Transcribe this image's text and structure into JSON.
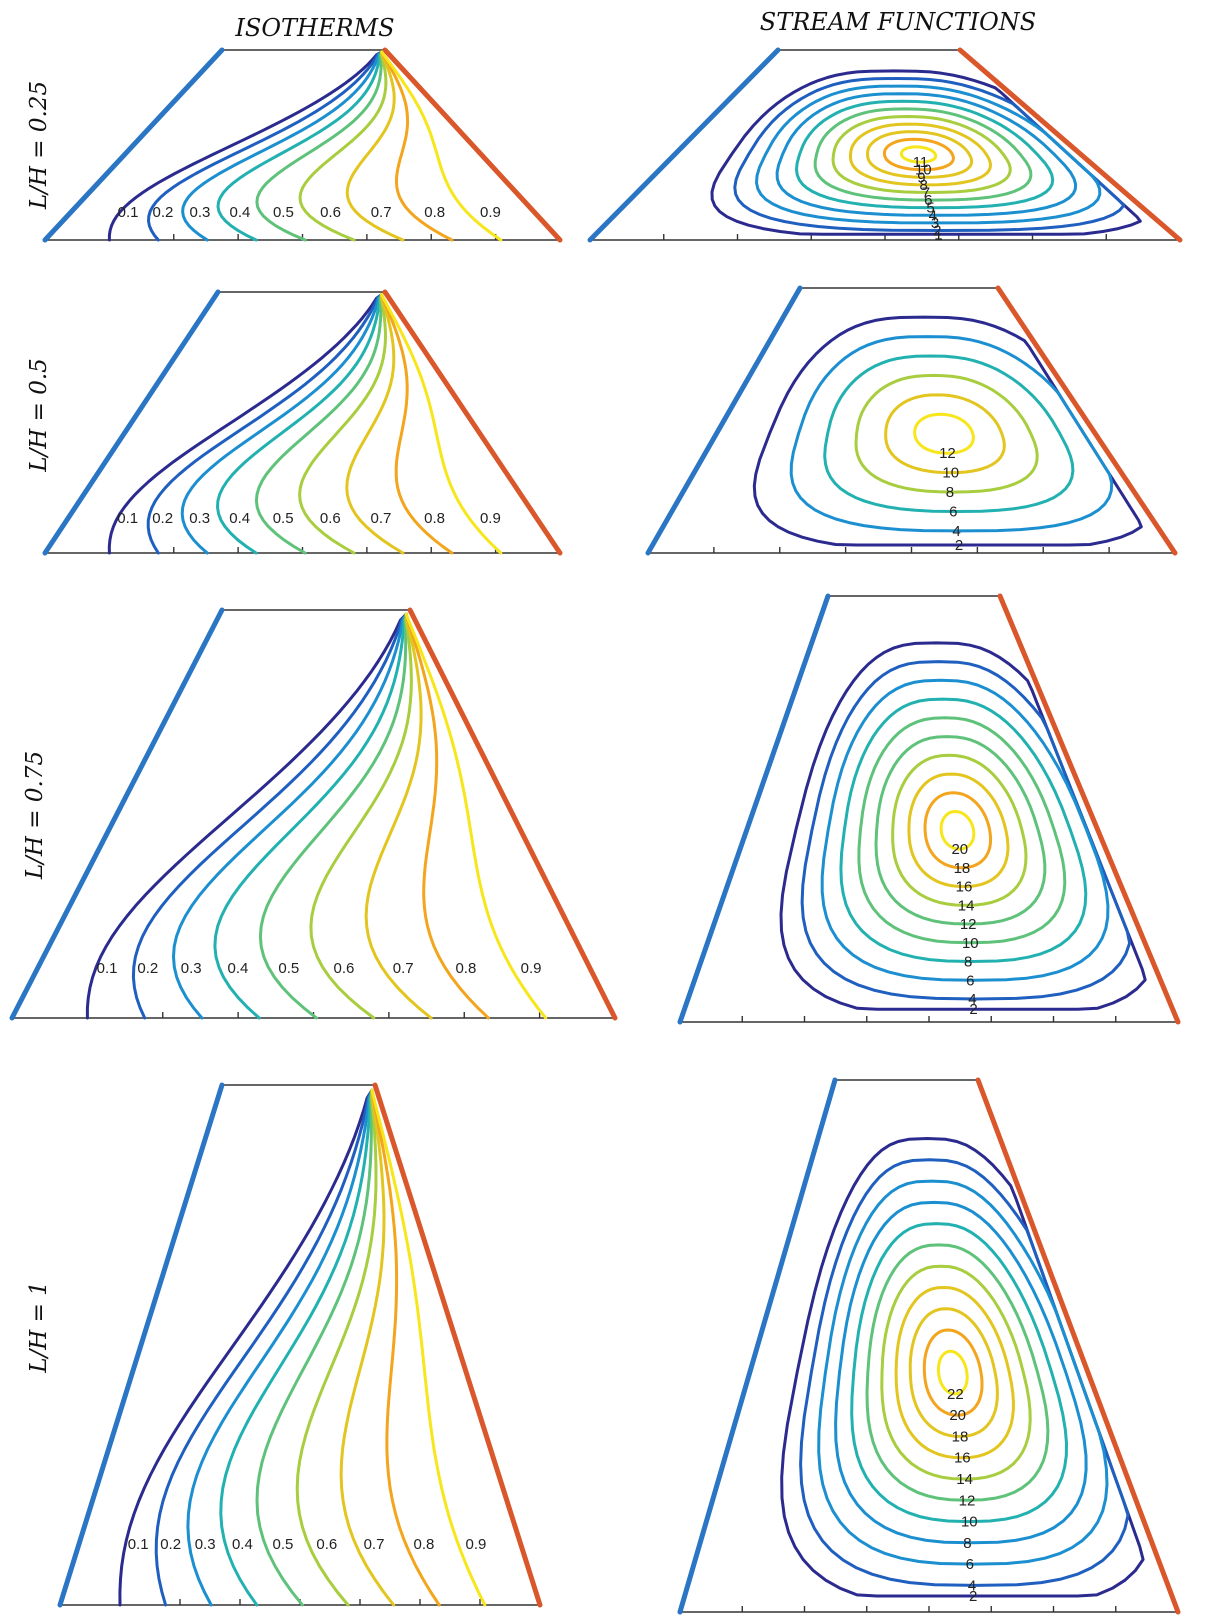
{
  "column_titles": {
    "left": "ISOTHERMS",
    "right": "STREAM FUNCTIONS"
  },
  "row_labels": [
    "L/H = 0.25",
    "L/H = 0.5",
    "L/H = 0.75",
    "L/H = 1"
  ],
  "colors": {
    "cold_wall": "#2a76c4",
    "hot_wall": "#d9572a",
    "colormap": [
      "#2b2a8f",
      "#1f5fbf",
      "#1c8fd0",
      "#22b1b0",
      "#5fc27a",
      "#a8cd3f",
      "#e3c51f",
      "#f2a51d",
      "#f6e61b"
    ]
  },
  "isotherm_levels": [
    "0.1",
    "0.2",
    "0.3",
    "0.4",
    "0.5",
    "0.6",
    "0.7",
    "0.8",
    "0.9"
  ],
  "stream_levels": {
    "row1": [
      "1",
      "2",
      "3",
      "4",
      "5",
      "6",
      "7",
      "8",
      "9",
      "10",
      "11"
    ],
    "row2": [
      "2",
      "4",
      "6",
      "8",
      "10",
      "12"
    ],
    "row3": [
      "2",
      "4",
      "6",
      "8",
      "10",
      "12",
      "14",
      "16",
      "18",
      "20"
    ],
    "row4": [
      "2",
      "4",
      "6",
      "8",
      "10",
      "12",
      "14",
      "16",
      "18",
      "20",
      "22"
    ]
  }
}
